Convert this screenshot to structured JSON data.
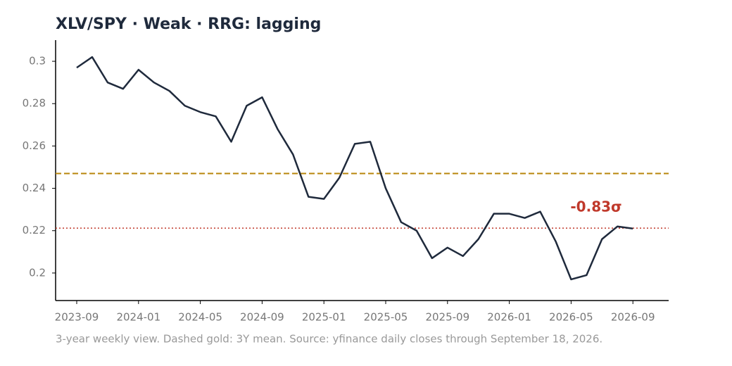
{
  "chart_data": {
    "type": "line",
    "title": "XLV/SPY  ·  Weak  ·  RRG: lagging",
    "caption": "3-year weekly view. Dashed gold: 3Y mean. Source: yfinance daily closes through September 18, 2026.",
    "x": [
      "2023-09",
      "2023-10",
      "2023-11",
      "2023-12",
      "2024-01",
      "2024-02",
      "2024-03",
      "2024-04",
      "2024-05",
      "2024-06",
      "2024-07",
      "2024-08",
      "2024-09",
      "2024-10",
      "2024-11",
      "2024-12",
      "2025-01",
      "2025-02",
      "2025-03",
      "2025-04",
      "2025-05",
      "2025-06",
      "2025-07",
      "2025-08",
      "2025-09",
      "2025-10",
      "2025-11",
      "2025-12",
      "2026-01",
      "2026-02",
      "2026-03",
      "2026-04",
      "2026-05",
      "2026-06",
      "2026-07",
      "2026-08",
      "2026-09"
    ],
    "series": [
      {
        "color": "#1f2a3c",
        "values": [
          0.297,
          0.302,
          0.29,
          0.287,
          0.296,
          0.29,
          0.286,
          0.279,
          0.276,
          0.274,
          0.262,
          0.279,
          0.283,
          0.268,
          0.256,
          0.236,
          0.235,
          0.245,
          0.261,
          0.262,
          0.24,
          0.224,
          0.22,
          0.207,
          0.212,
          0.208,
          0.216,
          0.228,
          0.228,
          0.226,
          0.229,
          0.215,
          0.197,
          0.199,
          0.216,
          0.222,
          0.221
        ]
      }
    ],
    "xticks": [
      "2023-09",
      "2024-01",
      "2024-05",
      "2024-09",
      "2025-01",
      "2025-05",
      "2025-09",
      "2026-01",
      "2026-05",
      "2026-09"
    ],
    "ylim": [
      0.187,
      0.31
    ],
    "yticks": [
      0.2,
      0.22,
      0.24,
      0.26,
      0.28,
      0.3
    ],
    "hlines": [
      {
        "value": 0.247,
        "color": "#b8860b",
        "style": "dashed"
      },
      {
        "value": 0.2212,
        "color": "#c0392b",
        "style": "dotted"
      }
    ],
    "annotation": {
      "text": "-0.83σ",
      "color": "#c0392b"
    }
  }
}
